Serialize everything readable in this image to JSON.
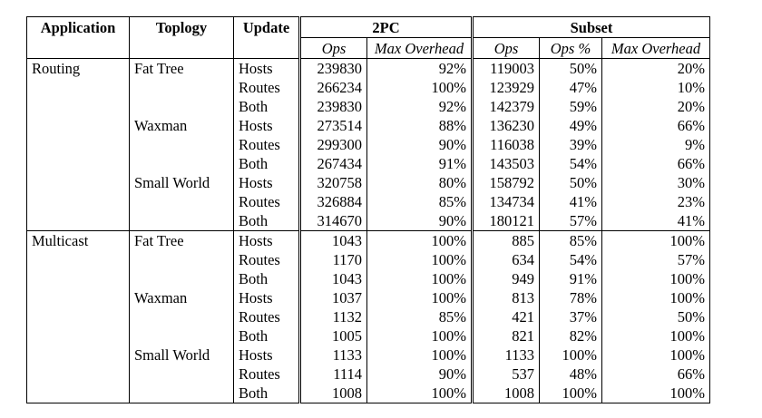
{
  "headers": {
    "application": "Application",
    "topology": "Toplogy",
    "update": "Update",
    "group_2pc": "2PC",
    "group_subset": "Subset",
    "ops": "Ops",
    "max_overhead": "Max Overhead",
    "ops_pct": "Ops %"
  },
  "rows": [
    {
      "app": "Routing",
      "topo": "Fat Tree",
      "update": "Hosts",
      "pc_ops": "239830",
      "pc_max": "92%",
      "sub_ops": "119003",
      "sub_pct": "50%",
      "sub_max": "20%"
    },
    {
      "app": "",
      "topo": "",
      "update": "Routes",
      "pc_ops": "266234",
      "pc_max": "100%",
      "sub_ops": "123929",
      "sub_pct": "47%",
      "sub_max": "10%"
    },
    {
      "app": "",
      "topo": "",
      "update": "Both",
      "pc_ops": "239830",
      "pc_max": "92%",
      "sub_ops": "142379",
      "sub_pct": "59%",
      "sub_max": "20%"
    },
    {
      "app": "",
      "topo": "Waxman",
      "update": "Hosts",
      "pc_ops": "273514",
      "pc_max": "88%",
      "sub_ops": "136230",
      "sub_pct": "49%",
      "sub_max": "66%"
    },
    {
      "app": "",
      "topo": "",
      "update": "Routes",
      "pc_ops": "299300",
      "pc_max": "90%",
      "sub_ops": "116038",
      "sub_pct": "39%",
      "sub_max": "9%"
    },
    {
      "app": "",
      "topo": "",
      "update": "Both",
      "pc_ops": "267434",
      "pc_max": "91%",
      "sub_ops": "143503",
      "sub_pct": "54%",
      "sub_max": "66%"
    },
    {
      "app": "",
      "topo": "Small World",
      "update": "Hosts",
      "pc_ops": "320758",
      "pc_max": "80%",
      "sub_ops": "158792",
      "sub_pct": "50%",
      "sub_max": "30%"
    },
    {
      "app": "",
      "topo": "",
      "update": "Routes",
      "pc_ops": "326884",
      "pc_max": "85%",
      "sub_ops": "134734",
      "sub_pct": "41%",
      "sub_max": "23%"
    },
    {
      "app": "",
      "topo": "",
      "update": "Both",
      "pc_ops": "314670",
      "pc_max": "90%",
      "sub_ops": "180121",
      "sub_pct": "57%",
      "sub_max": "41%"
    },
    {
      "app": "Multicast",
      "topo": "Fat Tree",
      "update": "Hosts",
      "pc_ops": "1043",
      "pc_max": "100%",
      "sub_ops": "885",
      "sub_pct": "85%",
      "sub_max": "100%"
    },
    {
      "app": "",
      "topo": "",
      "update": "Routes",
      "pc_ops": "1170",
      "pc_max": "100%",
      "sub_ops": "634",
      "sub_pct": "54%",
      "sub_max": "57%"
    },
    {
      "app": "",
      "topo": "",
      "update": "Both",
      "pc_ops": "1043",
      "pc_max": "100%",
      "sub_ops": "949",
      "sub_pct": "91%",
      "sub_max": "100%"
    },
    {
      "app": "",
      "topo": "Waxman",
      "update": "Hosts",
      "pc_ops": "1037",
      "pc_max": "100%",
      "sub_ops": "813",
      "sub_pct": "78%",
      "sub_max": "100%"
    },
    {
      "app": "",
      "topo": "",
      "update": "Routes",
      "pc_ops": "1132",
      "pc_max": "85%",
      "sub_ops": "421",
      "sub_pct": "37%",
      "sub_max": "50%"
    },
    {
      "app": "",
      "topo": "",
      "update": "Both",
      "pc_ops": "1005",
      "pc_max": "100%",
      "sub_ops": "821",
      "sub_pct": "82%",
      "sub_max": "100%"
    },
    {
      "app": "",
      "topo": "Small World",
      "update": "Hosts",
      "pc_ops": "1133",
      "pc_max": "100%",
      "sub_ops": "1133",
      "sub_pct": "100%",
      "sub_max": "100%"
    },
    {
      "app": "",
      "topo": "",
      "update": "Routes",
      "pc_ops": "1114",
      "pc_max": "90%",
      "sub_ops": "537",
      "sub_pct": "48%",
      "sub_max": "66%"
    },
    {
      "app": "",
      "topo": "",
      "update": "Both",
      "pc_ops": "1008",
      "pc_max": "100%",
      "sub_ops": "1008",
      "sub_pct": "100%",
      "sub_max": "100%"
    }
  ]
}
